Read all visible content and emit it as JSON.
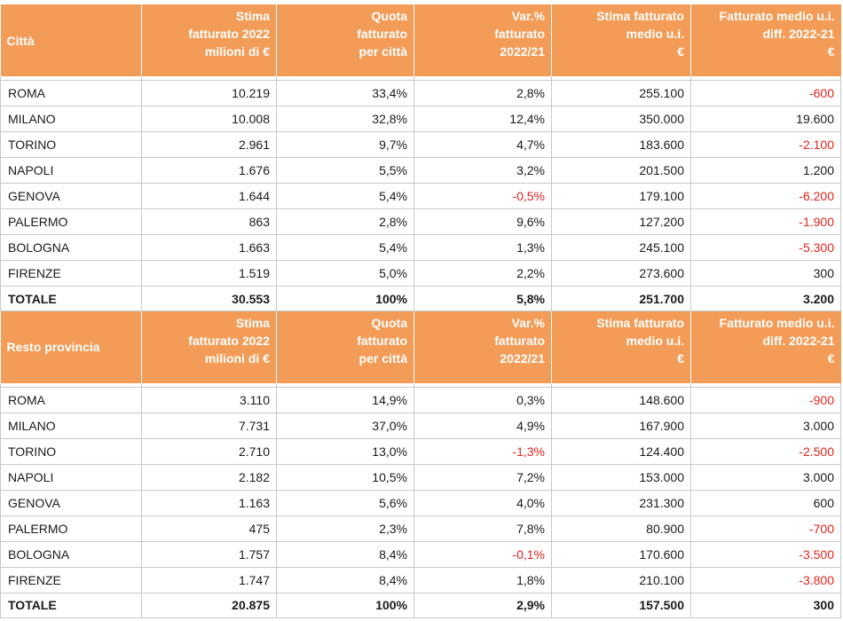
{
  "headers": {
    "col1": "Stima fatturato 2022 milioni di €",
    "col1_lines": [
      "Stima",
      "fatturato 2022",
      "milioni di €"
    ],
    "col2_lines": [
      "Quota",
      "fatturato",
      "per città"
    ],
    "col3_lines": [
      "Var.%",
      "fatturato",
      "2022/21"
    ],
    "col4_lines": [
      "Stima fatturato",
      "medio u.i.",
      "€"
    ],
    "col5_lines": [
      "Fatturato medio u.i.",
      "diff. 2022-21",
      "€"
    ]
  },
  "tables": [
    {
      "title": "Città",
      "rows": [
        {
          "city": "ROMA",
          "fatturato": "10.219",
          "quota": "33,4%",
          "var": "2,8%",
          "medio": "255.100",
          "diff": "-600"
        },
        {
          "city": "MILANO",
          "fatturato": "10.008",
          "quota": "32,8%",
          "var": "12,4%",
          "medio": "350.000",
          "diff": "19.600"
        },
        {
          "city": "TORINO",
          "fatturato": "2.961",
          "quota": "9,7%",
          "var": "4,7%",
          "medio": "183.600",
          "diff": "-2.100"
        },
        {
          "city": "NAPOLI",
          "fatturato": "1.676",
          "quota": "5,5%",
          "var": "3,2%",
          "medio": "201.500",
          "diff": "1.200"
        },
        {
          "city": "GENOVA",
          "fatturato": "1.644",
          "quota": "5,4%",
          "var": "-0,5%",
          "medio": "179.100",
          "diff": "-6.200"
        },
        {
          "city": "PALERMO",
          "fatturato": "863",
          "quota": "2,8%",
          "var": "9,6%",
          "medio": "127.200",
          "diff": "-1.900"
        },
        {
          "city": "BOLOGNA",
          "fatturato": "1.663",
          "quota": "5,4%",
          "var": "1,3%",
          "medio": "245.100",
          "diff": "-5.300"
        },
        {
          "city": "FIRENZE",
          "fatturato": "1.519",
          "quota": "5,0%",
          "var": "2,2%",
          "medio": "273.600",
          "diff": "300"
        }
      ],
      "total": {
        "city": "TOTALE",
        "fatturato": "30.553",
        "quota": "100%",
        "var": "5,8%",
        "medio": "251.700",
        "diff": "3.200"
      }
    },
    {
      "title": "Resto provincia",
      "rows": [
        {
          "city": "ROMA",
          "fatturato": "3.110",
          "quota": "14,9%",
          "var": "0,3%",
          "medio": "148.600",
          "diff": "-900"
        },
        {
          "city": "MILANO",
          "fatturato": "7.731",
          "quota": "37,0%",
          "var": "4,9%",
          "medio": "167.900",
          "diff": "3.000"
        },
        {
          "city": "TORINO",
          "fatturato": "2.710",
          "quota": "13,0%",
          "var": "-1,3%",
          "medio": "124.400",
          "diff": "-2.500"
        },
        {
          "city": "NAPOLI",
          "fatturato": "2.182",
          "quota": "10,5%",
          "var": "7,2%",
          "medio": "153.000",
          "diff": "3.000"
        },
        {
          "city": "GENOVA",
          "fatturato": "1.163",
          "quota": "5,6%",
          "var": "4,0%",
          "medio": "231.300",
          "diff": "600"
        },
        {
          "city": "PALERMO",
          "fatturato": "475",
          "quota": "2,3%",
          "var": "7,8%",
          "medio": "80.900",
          "diff": "-700"
        },
        {
          "city": "BOLOGNA",
          "fatturato": "1.757",
          "quota": "8,4%",
          "var": "-0,1%",
          "medio": "170.600",
          "diff": "-3.500"
        },
        {
          "city": "FIRENZE",
          "fatturato": "1.747",
          "quota": "8,4%",
          "var": "1,8%",
          "medio": "210.100",
          "diff": "-3.800"
        }
      ],
      "total": {
        "city": "TOTALE",
        "fatturato": "20.875",
        "quota": "100%",
        "var": "2,9%",
        "medio": "157.500",
        "diff": "300"
      }
    }
  ],
  "colors": {
    "header_bg": "#f39c57",
    "header_text": "#ffffff",
    "negative": "#e2231a"
  }
}
